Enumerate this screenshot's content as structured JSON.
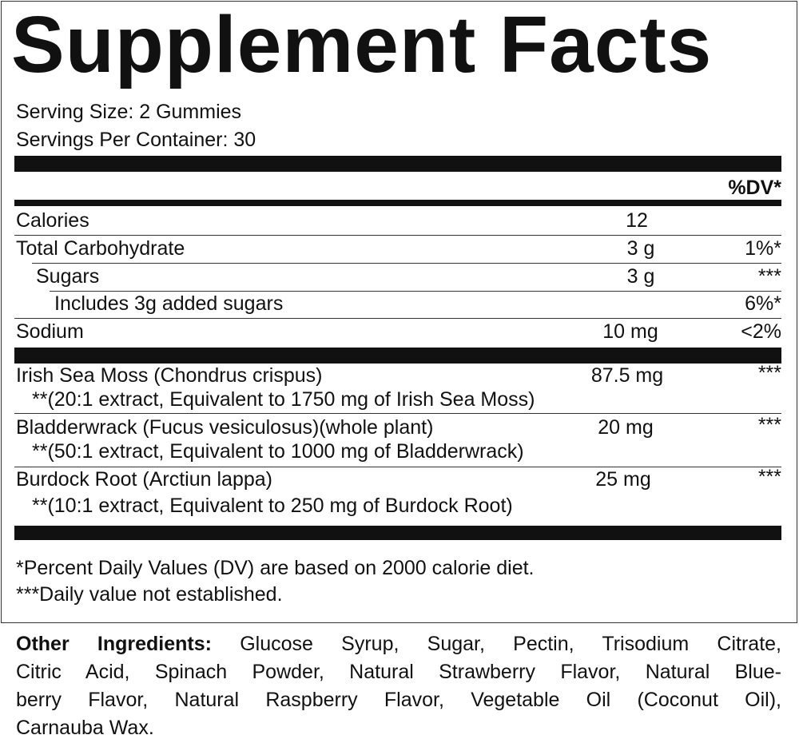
{
  "title": "Supplement Facts",
  "serving_size": "Serving Size: 2 Gummies",
  "servings_per_container": "Servings Per Container: 30",
  "dv_header": "%DV*",
  "nutrients": [
    {
      "name": "Calories",
      "amount": "12"
    },
    {
      "name": "Total Carbohydrate",
      "amount": "3 g",
      "dv": "1%*"
    },
    {
      "name": "Sugars",
      "amount": "3 g",
      "dv": "***"
    },
    {
      "name": "Includes 3g added sugars",
      "dv": "6%*"
    },
    {
      "name": "Sodium",
      "amount": "10 mg",
      "dv": "<2%"
    }
  ],
  "ingredients": [
    {
      "name": "Irish Sea Moss (Chondrus crispus)",
      "amount": "87.5 mg",
      "dv": "***",
      "note": "**(20:1 extract, Equivalent to 1750 mg of Irish Sea Moss)"
    },
    {
      "name": "Bladderwrack (Fucus vesiculosus)(whole plant)",
      "amount": "20 mg",
      "dv": "***",
      "note": "**(50:1 extract, Equivalent to 1000 mg of Bladderwrack)"
    },
    {
      "name": "Burdock Root (Arctiun lappa)",
      "amount": "25 mg",
      "dv": "***",
      "note": "**(10:1 extract, Equivalent to 250 mg of Burdock Root)"
    }
  ],
  "footnotes": [
    "*Percent Daily Values (DV) are based on 2000 calorie diet.",
    "***Daily value not established."
  ],
  "other_ingredients": {
    "label": "Other Ingredients:",
    "lines": [
      "Glucose Syrup, Sugar, Pectin, Trisodium Citrate,",
      "Citric Acid, Spinach Powder, Natural Strawberry Flavor, Natural Blue-",
      "berry Flavor, Natural Raspberry Flavor, Vegetable Oil (Coconut Oil),",
      "Carnauba Wax."
    ]
  }
}
